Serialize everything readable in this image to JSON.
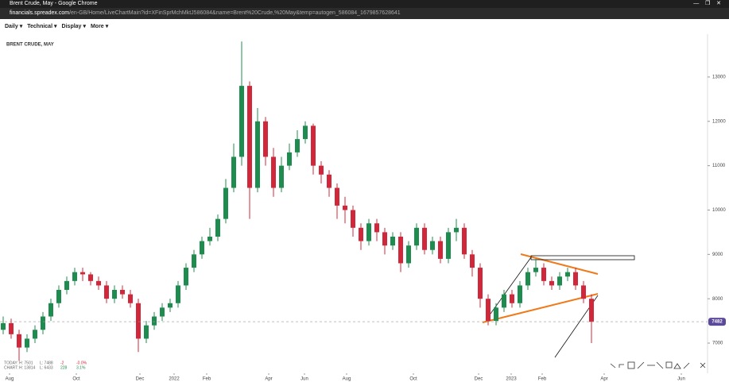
{
  "window": {
    "title": "Brent Crude, May - Google Chrome"
  },
  "browser": {
    "url_host": "financials.spreadex.com",
    "url_path": "/en-GB/Home/LiveChartMain?id=XFinSprMchMktJ586084&name=Brent%20Crude,%20May&temp=autogen_586084_1679857628641"
  },
  "toolbar": {
    "menus": [
      "Daily",
      "Technical",
      "Display",
      "More"
    ]
  },
  "stats": {
    "today": {
      "label": "TODAY:",
      "high": "H: 7501",
      "low": "L: 7488",
      "change": "-2",
      "pct": "-0.0%"
    },
    "chart": {
      "label": "CHART:",
      "high": "H: 13814",
      "low": "L: 6433",
      "change": "228",
      "pct": "3.1%"
    }
  },
  "chart_data": {
    "type": "candlestick",
    "title": "BRENT CRUDE, MAY",
    "up_color": "#1e8c4e",
    "down_color": "#d0283a",
    "ylim": [
      6320,
      13930
    ],
    "yticks": [
      7000,
      8000,
      9000,
      10000,
      11000,
      12000,
      13000
    ],
    "xlim": [
      -0.4,
      88.6
    ],
    "xticks": [
      {
        "value": 0.8,
        "label": "Aug"
      },
      {
        "value": 9.2,
        "label": "Oct"
      },
      {
        "value": 17.2,
        "label": "Dec"
      },
      {
        "value": 21.5,
        "label": "2022"
      },
      {
        "value": 25.6,
        "label": "Feb"
      },
      {
        "value": 33.4,
        "label": "Apr"
      },
      {
        "value": 37.9,
        "label": "Jun"
      },
      {
        "value": 43.2,
        "label": "Aug"
      },
      {
        "value": 51.6,
        "label": "Oct"
      },
      {
        "value": 59.8,
        "label": "Dec"
      },
      {
        "value": 63.9,
        "label": "2023"
      },
      {
        "value": 67.8,
        "label": "Feb"
      },
      {
        "value": 75.6,
        "label": "Apr"
      },
      {
        "value": 85.3,
        "label": "Jun"
      }
    ],
    "last_price": {
      "value": 7482,
      "label": "7482",
      "color": "#5b4a9b"
    },
    "open": [
      7300,
      7450,
      7200,
      6900,
      7100,
      7300,
      7600,
      7900,
      8200,
      8400,
      8600,
      8550,
      8400,
      8300,
      8000,
      8200,
      8100,
      7900,
      7100,
      7400,
      7600,
      7800,
      7900,
      8300,
      8700,
      9000,
      9300,
      9400,
      9800,
      10500,
      11200,
      12800,
      10500,
      12000,
      11200,
      10500,
      11000,
      11300,
      11600,
      11900,
      11000,
      10800,
      10500,
      10100,
      10000,
      9600,
      9300,
      9700,
      9500,
      9200,
      9400,
      8800,
      9200,
      9600,
      9100,
      9300,
      8900,
      9500,
      9600,
      9000,
      8700,
      8000,
      7500,
      7800,
      8100,
      7900,
      8300,
      8600,
      8700,
      8400,
      8300,
      8500,
      8600,
      8300,
      8000
    ],
    "high": [
      7600,
      7550,
      7300,
      7200,
      7400,
      7700,
      8000,
      8300,
      8500,
      8700,
      8700,
      8600,
      8500,
      8400,
      8300,
      8300,
      8200,
      8000,
      7500,
      7700,
      7900,
      8000,
      8400,
      8800,
      9100,
      9400,
      9600,
      9900,
      10700,
      11500,
      13800,
      12900,
      12300,
      12100,
      11400,
      11200,
      11500,
      11800,
      12000,
      11950,
      11100,
      10900,
      10600,
      10300,
      10100,
      9700,
      9800,
      9800,
      9600,
      9500,
      9500,
      9300,
      9700,
      9700,
      9400,
      9400,
      9600,
      9800,
      9700,
      9100,
      8800,
      8100,
      7900,
      8200,
      8200,
      8400,
      8700,
      8900,
      8800,
      8500,
      8600,
      8700,
      8700,
      8400,
      8100
    ],
    "low": [
      7200,
      7100,
      6600,
      6800,
      7000,
      7200,
      7500,
      7800,
      8100,
      8300,
      8400,
      8300,
      8200,
      7900,
      7900,
      8000,
      7800,
      6800,
      7000,
      7300,
      7500,
      7700,
      7800,
      8200,
      8600,
      8900,
      9200,
      9300,
      9700,
      10400,
      11000,
      9800,
      10400,
      11000,
      10300,
      10400,
      10900,
      11200,
      11500,
      10800,
      10600,
      10300,
      9800,
      9700,
      9400,
      9100,
      9200,
      9300,
      9000,
      9100,
      8600,
      8700,
      9100,
      9000,
      9000,
      8800,
      8800,
      9300,
      8900,
      8500,
      7800,
      7400,
      7400,
      7700,
      7800,
      7800,
      8200,
      8500,
      8300,
      8200,
      8200,
      8400,
      8200,
      7900,
      7000
    ],
    "close": [
      7450,
      7200,
      6900,
      7100,
      7300,
      7600,
      7900,
      8200,
      8400,
      8600,
      8550,
      8400,
      8300,
      8000,
      8200,
      8100,
      7900,
      7100,
      7400,
      7600,
      7800,
      7900,
      8300,
      8700,
      9000,
      9300,
      9400,
      9800,
      10500,
      11200,
      12800,
      10500,
      12000,
      11200,
      10500,
      11000,
      11300,
      11600,
      11900,
      11000,
      10800,
      10500,
      10100,
      10000,
      9600,
      9300,
      9700,
      9500,
      9200,
      9400,
      8800,
      9200,
      9600,
      9100,
      9300,
      8900,
      9500,
      9600,
      9000,
      8700,
      8000,
      7500,
      7800,
      8100,
      7900,
      8300,
      8600,
      8700,
      8400,
      8300,
      8500,
      8600,
      8300,
      8000,
      7480
    ]
  }
}
